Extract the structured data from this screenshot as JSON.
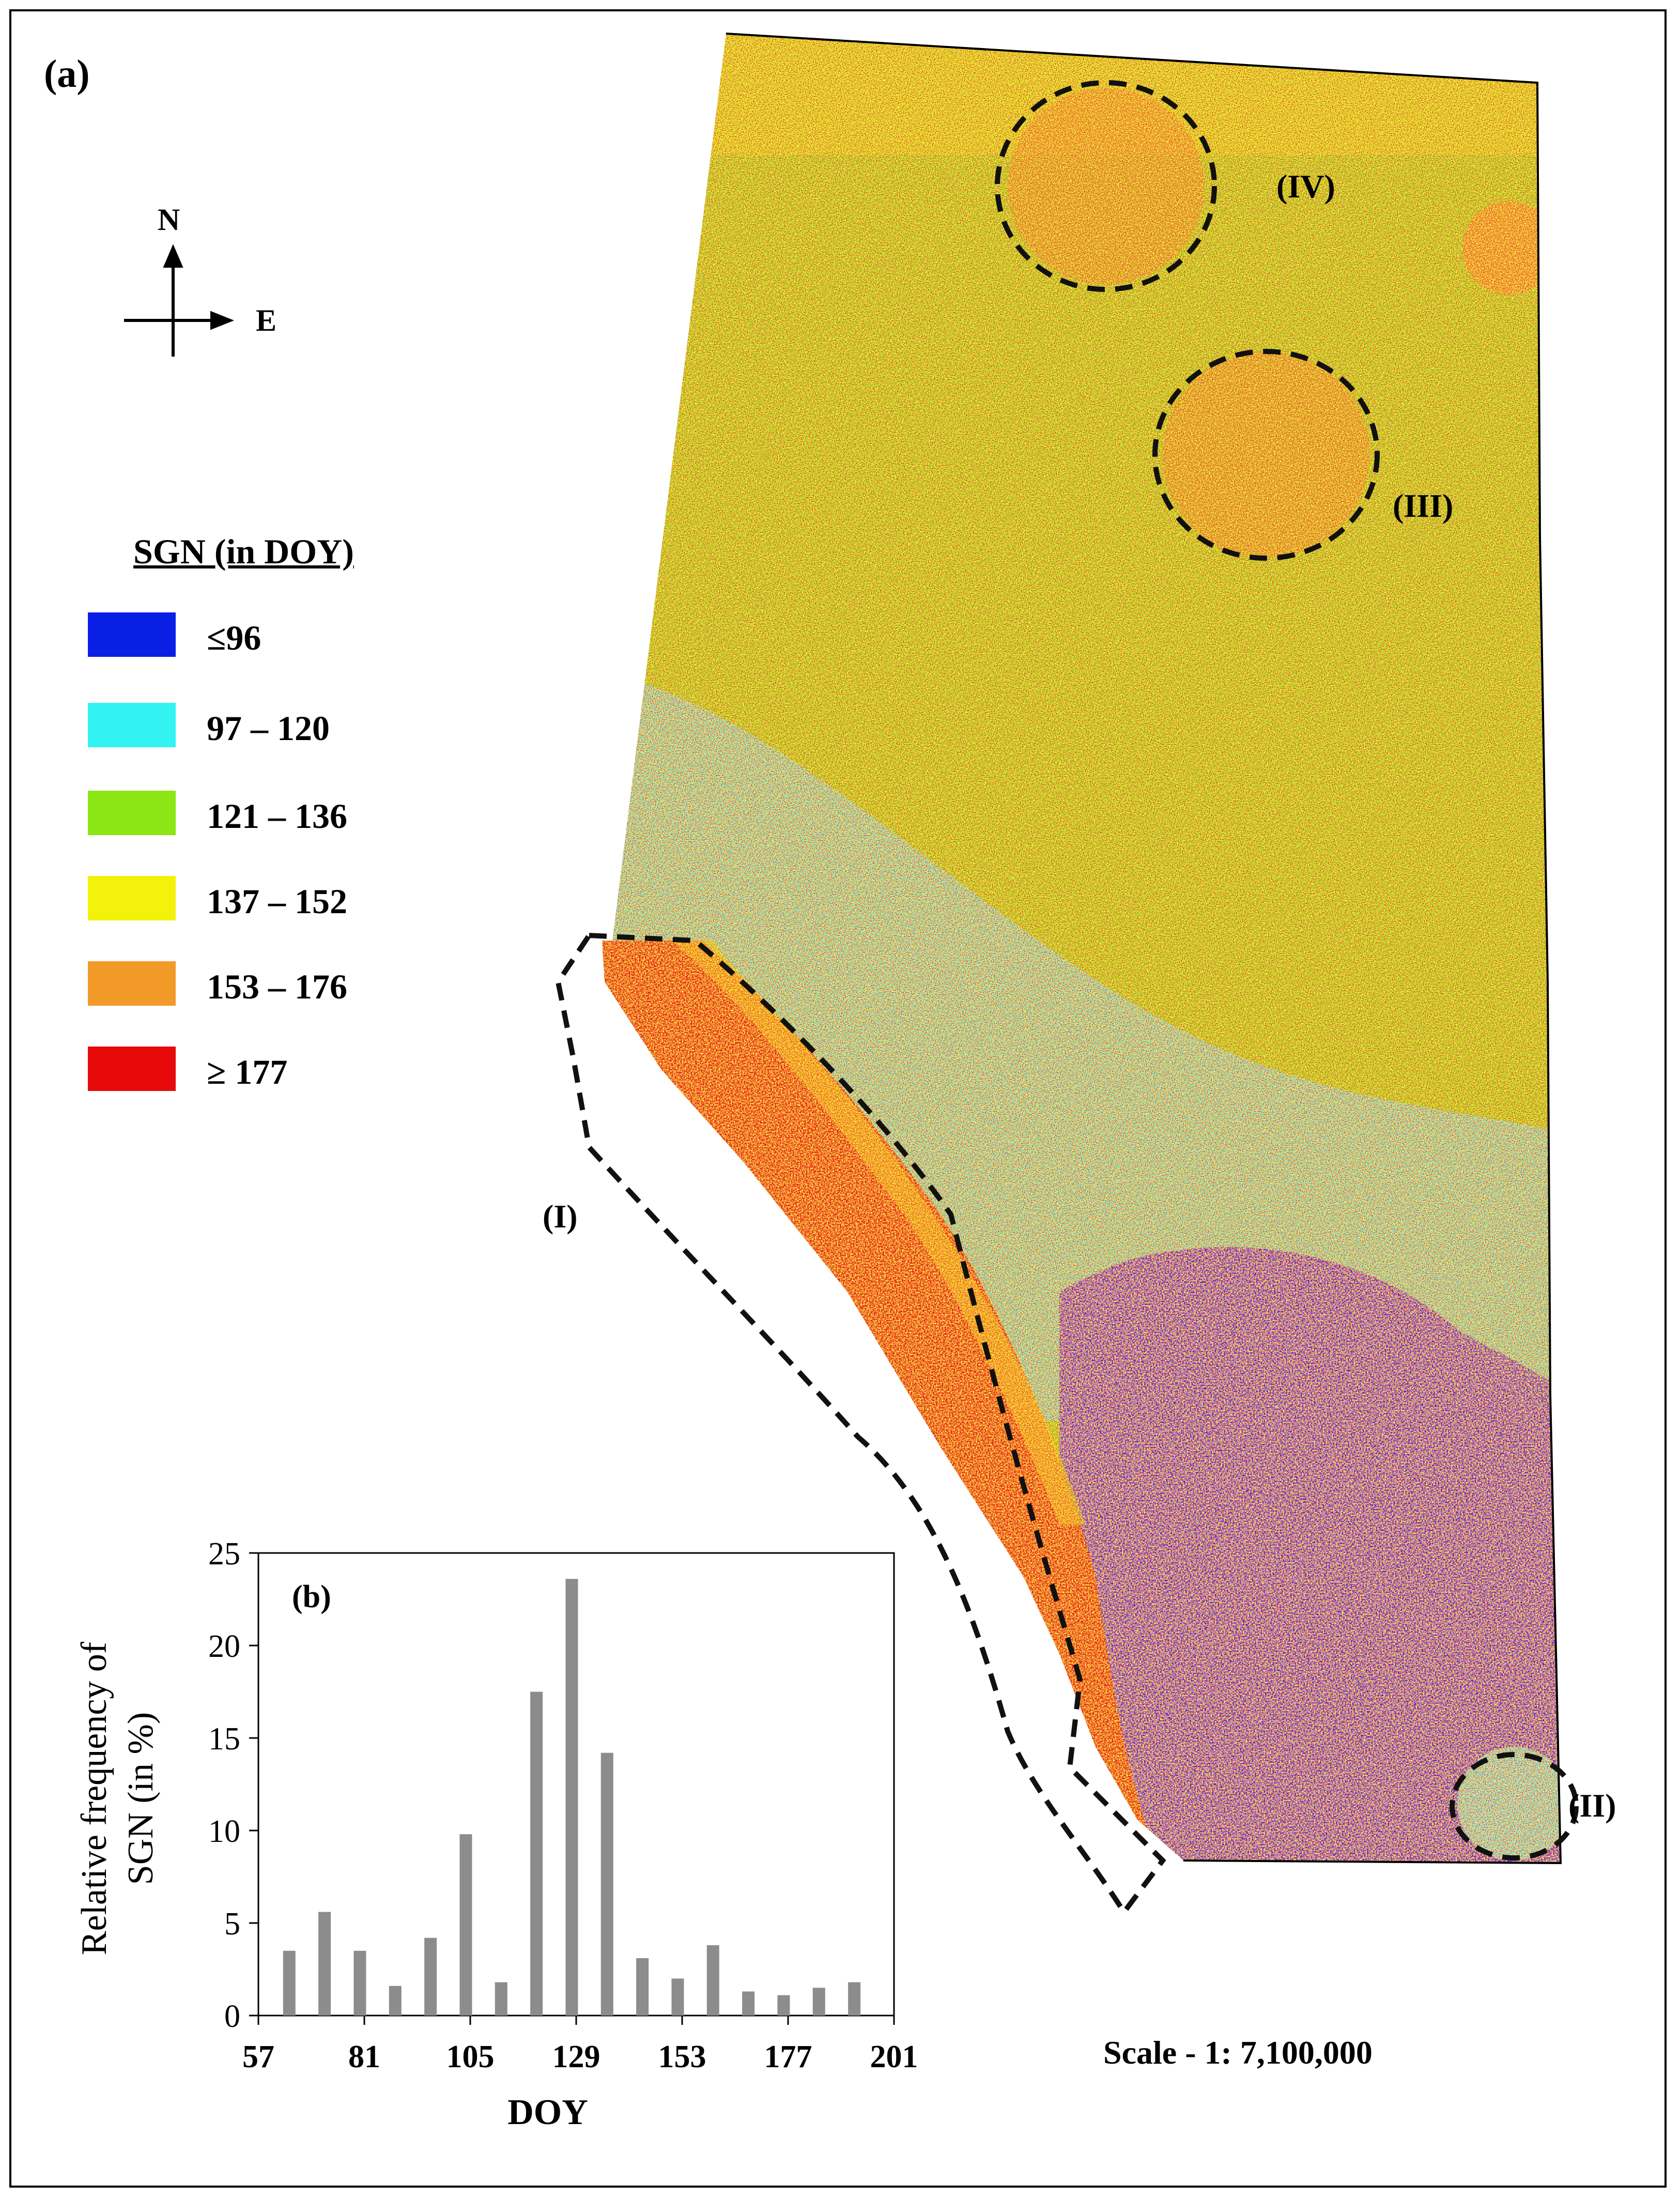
{
  "panel_a": {
    "label": "(a)",
    "compass": {
      "north": "N",
      "east": "E"
    },
    "legend": {
      "title": "SGN (in DOY)",
      "items": [
        {
          "label": "≤96",
          "color": "#0a1fe6"
        },
        {
          "label": "97 – 120",
          "color": "#33f2f2"
        },
        {
          "label": "121 – 136",
          "color": "#8ce614"
        },
        {
          "label": "137 – 152",
          "color": "#f2f20a"
        },
        {
          "label": "153 – 176",
          "color": "#f29a28"
        },
        {
          "label": "≥ 177",
          "color": "#e60a0a"
        }
      ]
    },
    "regions": [
      "(I)",
      "(II)",
      "(III)",
      "(IV)"
    ],
    "scale": "Scale - 1: 7,100,000"
  },
  "chart_data": {
    "type": "bar",
    "panel_label": "(b)",
    "xlabel": "DOY",
    "ylabel_line1": "Relative frequency of",
    "ylabel_line2": "SGN (in %)",
    "xticks": [
      "57",
      "81",
      "105",
      "129",
      "153",
      "177",
      "201"
    ],
    "yticks": [
      "0",
      "5",
      "10",
      "15",
      "20",
      "25"
    ],
    "xlim": [
      57,
      201
    ],
    "ylim": [
      0,
      25
    ],
    "bar_color": "#8c8c8c",
    "x": [
      64,
      72,
      80,
      88,
      96,
      104,
      112,
      120,
      128,
      136,
      144,
      152,
      160,
      168,
      176,
      184,
      192
    ],
    "values": [
      3.5,
      5.6,
      3.5,
      1.6,
      4.2,
      9.8,
      1.8,
      17.5,
      23.6,
      14.2,
      3.1,
      2.0,
      3.8,
      1.3,
      1.1,
      1.5,
      1.8
    ]
  }
}
